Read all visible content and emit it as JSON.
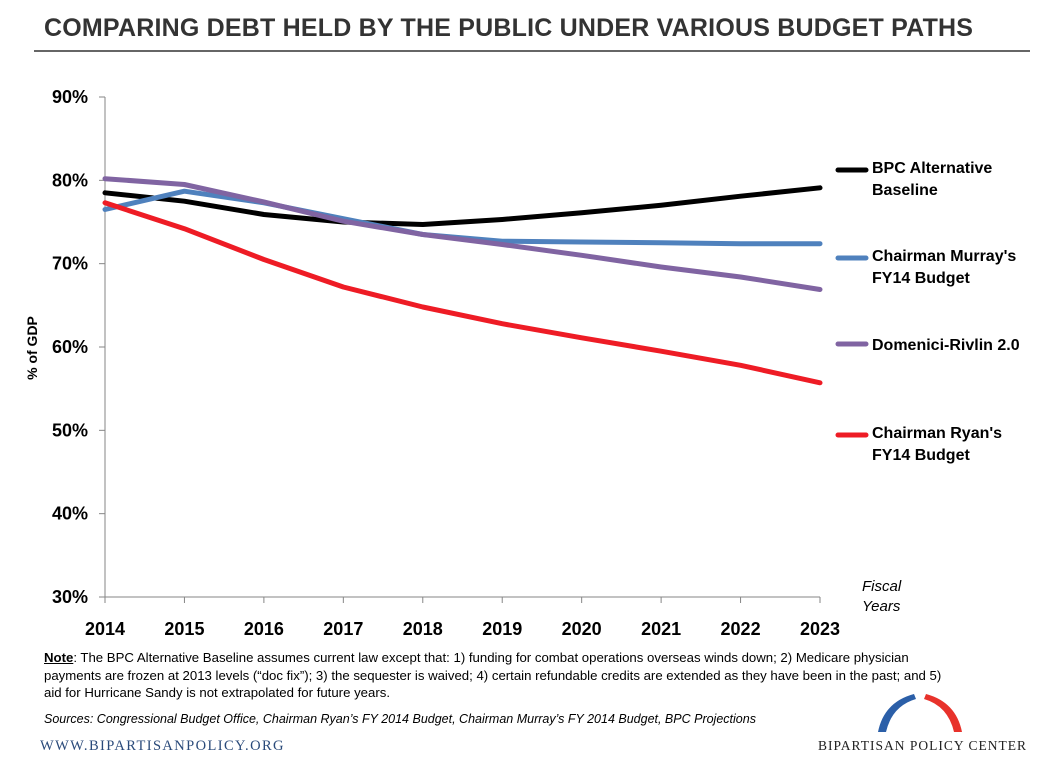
{
  "title": "COMPARING DEBT HELD BY THE PUBLIC UNDER VARIOUS BUDGET PATHS",
  "note": {
    "label": "Note",
    "text": ": The BPC Alternative Baseline assumes current law except that: 1) funding for combat operations overseas winds down; 2) Medicare physician payments are frozen at 2013 levels (“doc fix”); 3) the sequester is waived; 4) certain refundable credits are extended as they have been in the past; and 5) aid for Hurricane Sandy is not extrapolated for future years."
  },
  "sources": "Sources: Congressional Budget Office, Chairman Ryan’s FY 2014 Budget, Chairman Murray’s FY 2014 Budget, BPC Projections",
  "footer": {
    "website": "WWW.BIPARTISANPOLICY.ORG",
    "org_name": "BIPARTISAN POLICY CENTER"
  },
  "colors": {
    "bpc_alternative": "#000000",
    "murray": "#4f81bd",
    "domenici_rivlin": "#8064a2",
    "ryan": "#ee1c25",
    "logo_blue": "#2b5fa8",
    "logo_red": "#e8322b"
  },
  "chart_data": {
    "type": "line",
    "title": "COMPARING DEBT HELD BY THE PUBLIC UNDER VARIOUS BUDGET PATHS",
    "xlabel": "Fiscal\nYears",
    "ylabel": "% of GDP",
    "x": [
      2014,
      2015,
      2016,
      2017,
      2018,
      2019,
      2020,
      2021,
      2022,
      2023
    ],
    "ylim": [
      30,
      90
    ],
    "yticks": [
      30,
      40,
      50,
      60,
      70,
      80,
      90
    ],
    "ytick_labels": [
      "30%",
      "40%",
      "50%",
      "60%",
      "70%",
      "80%",
      "90%"
    ],
    "grid": false,
    "legend_position": "right",
    "series": [
      {
        "name": "BPC Alternative\nBaseline",
        "color": "#000000",
        "width": 5,
        "values": [
          78.5,
          77.5,
          75.9,
          75.0,
          74.7,
          75.3,
          76.1,
          77.0,
          78.1,
          79.1
        ]
      },
      {
        "name": "Chairman Murray's\nFY14 Budget",
        "color": "#4f81bd",
        "width": 5,
        "values": [
          76.5,
          78.7,
          77.3,
          75.4,
          73.5,
          72.7,
          72.6,
          72.5,
          72.4,
          72.4
        ]
      },
      {
        "name": "Domenici-Rivlin 2.0",
        "color": "#8064a2",
        "width": 5,
        "values": [
          80.2,
          79.5,
          77.4,
          75.1,
          73.5,
          72.3,
          71.0,
          69.6,
          68.4,
          66.9
        ]
      },
      {
        "name": "Chairman Ryan's\nFY14 Budget",
        "color": "#ee1c25",
        "width": 5,
        "values": [
          77.3,
          74.2,
          70.5,
          67.2,
          64.8,
          62.8,
          61.1,
          59.5,
          57.8,
          55.7
        ]
      }
    ]
  }
}
